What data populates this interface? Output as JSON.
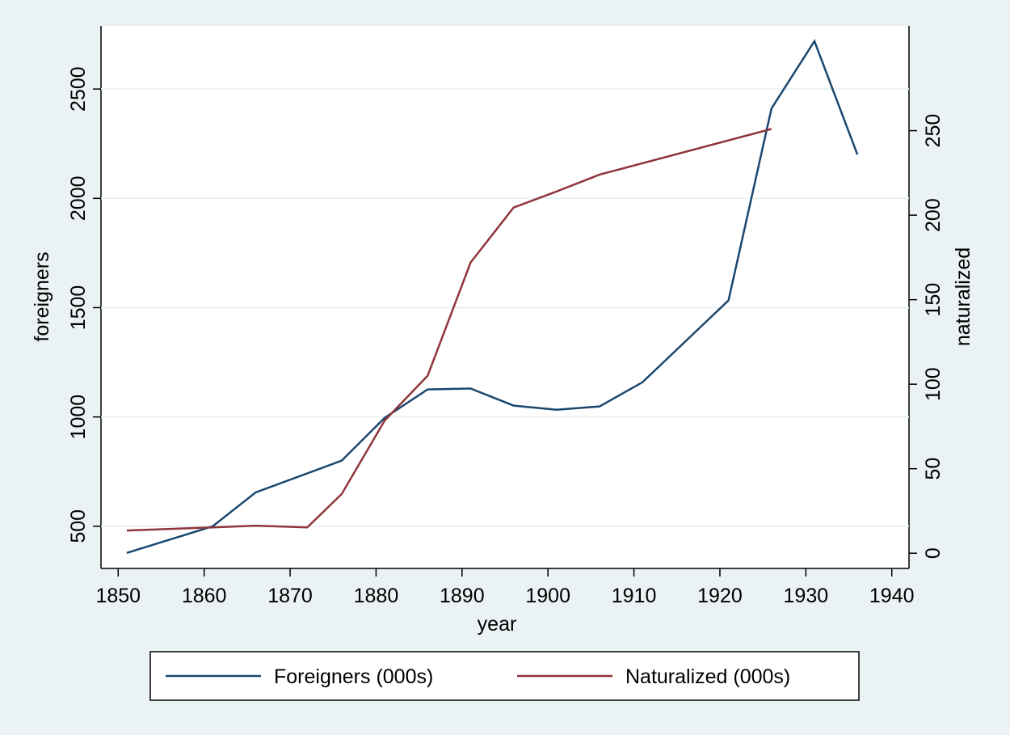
{
  "chart_data": {
    "type": "line",
    "x_label": "year",
    "y_label": "foreigners",
    "y2_label": "naturalized",
    "xlim": [
      1848,
      1942
    ],
    "xticks": [
      1850,
      1860,
      1870,
      1880,
      1890,
      1900,
      1910,
      1920,
      1930,
      1940
    ],
    "ylim": [
      307,
      2789
    ],
    "yticks": [
      500,
      1000,
      1500,
      2000,
      2500
    ],
    "y2lim": [
      -9,
      312
    ],
    "y2ticks": [
      0,
      50,
      100,
      150,
      200,
      250
    ],
    "grid": true,
    "legend": "bottom",
    "series": [
      {
        "name": "Foreigners (000s)",
        "color": "#1a476f",
        "x": [
          1851,
          1861,
          1866,
          1876,
          1881,
          1886,
          1891,
          1896,
          1901,
          1906,
          1911,
          1921,
          1926,
          1931,
          1936
        ],
        "values": [
          378,
          500,
          655,
          800,
          996,
          1126,
          1130,
          1052,
          1033,
          1048,
          1159,
          1533,
          2411,
          2719,
          2200
        ]
      },
      {
        "name": "Naturalized (000s)",
        "color": "#90353b",
        "axis": "y2",
        "x": [
          1851,
          1861,
          1866,
          1872,
          1876,
          1881,
          1886,
          1891,
          1896,
          1901,
          1906,
          1926
        ],
        "values": [
          13.4,
          15.3,
          16.3,
          15.3,
          35,
          78.5,
          105,
          172,
          204.5,
          214,
          224,
          251
        ]
      }
    ]
  }
}
